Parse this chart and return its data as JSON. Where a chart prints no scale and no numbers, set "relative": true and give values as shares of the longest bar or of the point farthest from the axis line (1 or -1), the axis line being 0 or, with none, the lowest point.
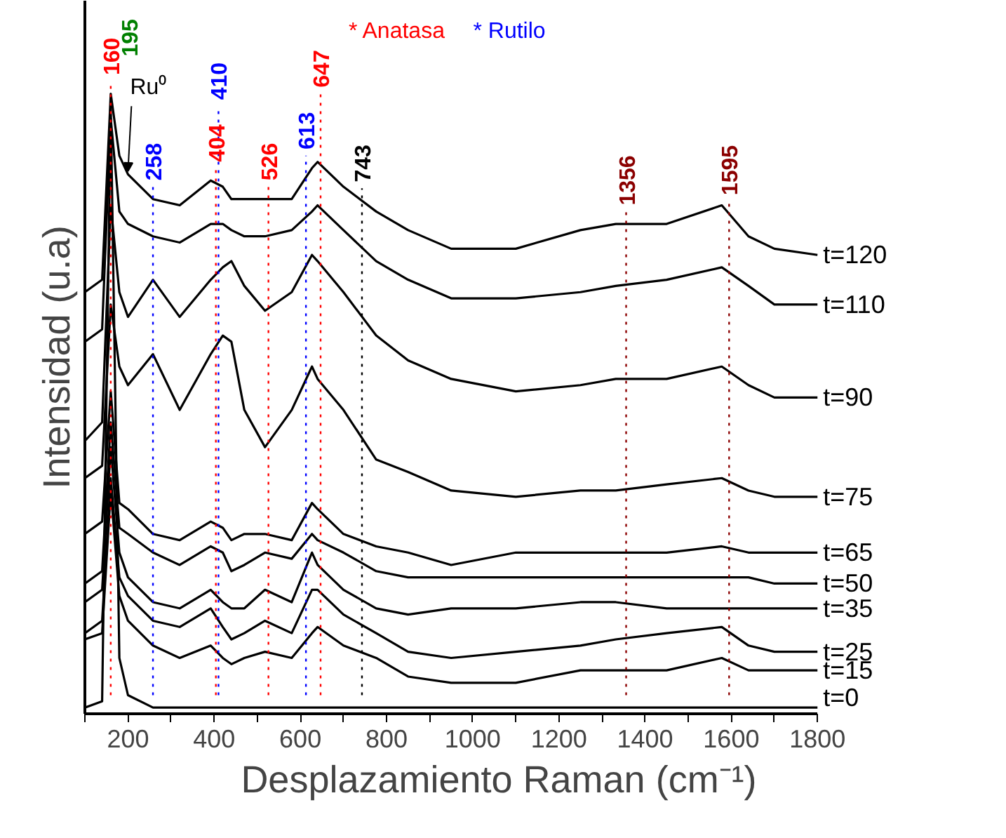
{
  "chart_data": {
    "type": "line",
    "relative": true,
    "line_style": "solid",
    "xlabel": "Desplazamiento Raman (cm⁻¹)",
    "ylabel": "Intensidad (u.a)",
    "xlim": [
      100,
      1800
    ],
    "xticks": [
      {
        "value": 100,
        "label": null
      },
      200,
      {
        "value": 300,
        "label": null
      },
      400,
      {
        "value": 500,
        "label": null
      },
      600,
      {
        "value": 700,
        "label": null
      },
      800,
      {
        "value": 900,
        "label": null
      },
      1000,
      {
        "value": 1100,
        "label": null
      },
      1200,
      {
        "value": 1300,
        "label": null
      },
      1400,
      {
        "value": 1500,
        "label": null
      },
      1600,
      {
        "value": 1700,
        "label": null
      },
      1800
    ],
    "x": [
      100,
      140,
      160,
      180,
      200,
      258,
      320,
      392,
      420,
      440,
      470,
      518,
      580,
      627,
      640,
      700,
      776,
      850,
      950,
      1100,
      1250,
      1332,
      1450,
      1578,
      1640,
      1700,
      1800
    ],
    "series": [
      {
        "name": "t=120",
        "color": "#000000",
        "values": [
          0.68,
          0.7,
          1.0,
          0.9,
          0.87,
          0.83,
          0.82,
          0.86,
          0.85,
          0.83,
          0.83,
          0.83,
          0.83,
          0.88,
          0.89,
          0.85,
          0.81,
          0.78,
          0.75,
          0.75,
          0.78,
          0.79,
          0.79,
          0.82,
          0.77,
          0.75,
          0.74
        ]
      },
      {
        "name": "t=110",
        "color": "#000000",
        "values": [
          0.6,
          0.62,
          0.96,
          0.81,
          0.79,
          0.77,
          0.76,
          0.79,
          0.79,
          0.78,
          0.77,
          0.77,
          0.78,
          0.81,
          0.82,
          0.78,
          0.73,
          0.7,
          0.67,
          0.67,
          0.68,
          0.69,
          0.7,
          0.72,
          0.69,
          0.66,
          0.66
        ]
      },
      {
        "name": "t=90",
        "color": "#000000",
        "values": [
          0.44,
          0.47,
          0.82,
          0.68,
          0.64,
          0.7,
          0.64,
          0.7,
          0.72,
          0.73,
          0.69,
          0.65,
          0.68,
          0.74,
          0.73,
          0.68,
          0.61,
          0.57,
          0.54,
          0.52,
          0.53,
          0.54,
          0.54,
          0.56,
          0.53,
          0.51,
          0.51
        ]
      },
      {
        "name": "t=75",
        "color": "#000000",
        "values": [
          0.38,
          0.4,
          0.66,
          0.56,
          0.53,
          0.58,
          0.49,
          0.58,
          0.61,
          0.6,
          0.49,
          0.43,
          0.49,
          0.56,
          0.54,
          0.49,
          0.41,
          0.39,
          0.36,
          0.35,
          0.36,
          0.36,
          0.37,
          0.38,
          0.36,
          0.35,
          0.35
        ]
      },
      {
        "name": "t=65",
        "color": "#000000",
        "values": [
          0.29,
          0.31,
          0.52,
          0.34,
          0.33,
          0.29,
          0.28,
          0.31,
          0.3,
          0.28,
          0.29,
          0.29,
          0.28,
          0.34,
          0.33,
          0.29,
          0.27,
          0.26,
          0.24,
          0.26,
          0.26,
          0.26,
          0.26,
          0.27,
          0.26,
          0.26,
          0.26
        ]
      },
      {
        "name": "t=50",
        "color": "#000000",
        "values": [
          0.21,
          0.23,
          0.47,
          0.3,
          0.29,
          0.26,
          0.24,
          0.27,
          0.26,
          0.23,
          0.24,
          0.26,
          0.25,
          0.29,
          0.28,
          0.26,
          0.23,
          0.22,
          0.22,
          0.22,
          0.22,
          0.22,
          0.22,
          0.22,
          0.22,
          0.21,
          0.21
        ]
      },
      {
        "name": "t=35",
        "color": "#000000",
        "values": [
          0.18,
          0.2,
          0.43,
          0.26,
          0.22,
          0.18,
          0.17,
          0.2,
          0.18,
          0.17,
          0.17,
          0.2,
          0.18,
          0.26,
          0.24,
          0.2,
          0.17,
          0.16,
          0.17,
          0.17,
          0.18,
          0.18,
          0.17,
          0.17,
          0.17,
          0.17,
          0.17
        ]
      },
      {
        "name": "t=25",
        "color": "#000000",
        "values": [
          0.13,
          0.15,
          0.38,
          0.22,
          0.19,
          0.15,
          0.14,
          0.17,
          0.14,
          0.12,
          0.13,
          0.15,
          0.13,
          0.2,
          0.2,
          0.16,
          0.13,
          0.1,
          0.09,
          0.1,
          0.11,
          0.12,
          0.13,
          0.14,
          0.11,
          0.1,
          0.1
        ]
      },
      {
        "name": "t=15",
        "color": "#000000",
        "values": [
          0.12,
          0.13,
          0.36,
          0.19,
          0.15,
          0.11,
          0.09,
          0.11,
          0.09,
          0.08,
          0.09,
          0.1,
          0.09,
          0.13,
          0.14,
          0.11,
          0.09,
          0.06,
          0.05,
          0.05,
          0.07,
          0.07,
          0.07,
          0.09,
          0.07,
          0.07,
          0.07
        ]
      },
      {
        "name": "t=0",
        "color": "#000000",
        "values": [
          0.01,
          0.02,
          0.98,
          0.09,
          0.03,
          0.01,
          0.01,
          0.01,
          0.01,
          0.01,
          0.01,
          0.01,
          0.01,
          0.01,
          0.01,
          0.01,
          0.01,
          0.01,
          0.01,
          0.01,
          0.01,
          0.01,
          0.01,
          0.01,
          0.01,
          0.01,
          0.01
        ]
      }
    ],
    "ref_lines": [
      {
        "axis": "x",
        "value": 160,
        "label": "160",
        "color": "#ff0000",
        "line_style": "dotted"
      },
      {
        "axis": "x",
        "value": 258,
        "label": "258",
        "color": "#0000ff",
        "line_style": "dotted"
      },
      {
        "axis": "x",
        "value": 404,
        "label": "404",
        "color": "#ff0000",
        "line_style": "dotted"
      },
      {
        "axis": "x",
        "value": 410,
        "label": "410",
        "color": "#0000ff",
        "line_style": "dotted"
      },
      {
        "axis": "x",
        "value": 526,
        "label": "526",
        "color": "#ff0000",
        "line_style": "dotted"
      },
      {
        "axis": "x",
        "value": 613,
        "label": "613",
        "color": "#0000ff",
        "line_style": "dotted"
      },
      {
        "axis": "x",
        "value": 647,
        "label": "647",
        "color": "#ff0000",
        "line_style": "dotted"
      },
      {
        "axis": "x",
        "value": 743,
        "label": "743",
        "color": "#000000",
        "line_style": "dotted"
      },
      {
        "axis": "x",
        "value": 1356,
        "label": "1356",
        "color": "#8b0000",
        "line_style": "dotted"
      },
      {
        "axis": "x",
        "value": 1595,
        "label": "1595",
        "color": "#8b0000",
        "line_style": "dotted"
      }
    ],
    "annotations": [
      "* Anatasa",
      "* Rutilo",
      "195",
      {
        "text": "Ru⁰",
        "x": 200,
        "y": 0.87
      }
    ]
  }
}
